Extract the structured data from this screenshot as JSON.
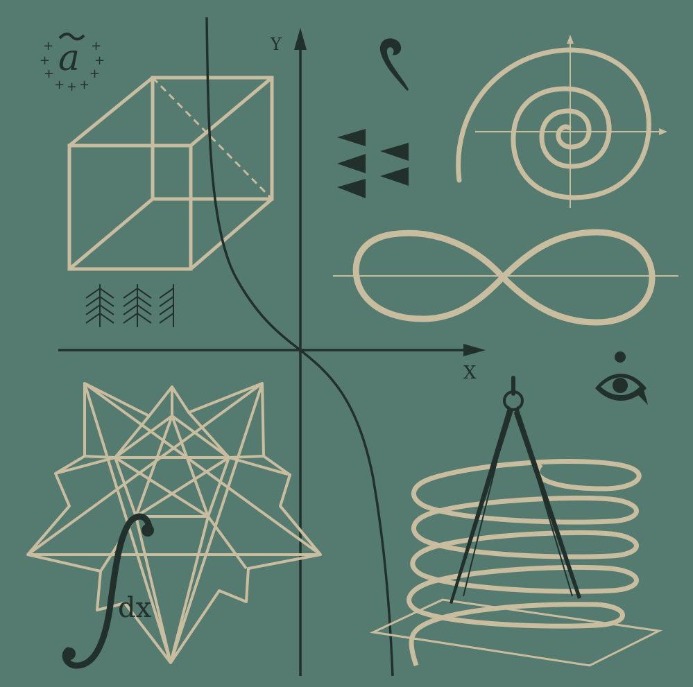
{
  "canvas": {
    "background": "#557a70"
  },
  "palette": {
    "beige": "#c9bd9f",
    "dark": "#22302b"
  },
  "axes": {
    "x_label": "X",
    "y_label": "Y"
  },
  "symbols": {
    "vector_label": "a",
    "integral_text": "dx"
  },
  "icons": [
    "vector-symbol-icon",
    "cube-wireframe-icon",
    "branch-pattern-icon",
    "curve-hook-icon",
    "triangle-pattern-icon",
    "spiral-icon",
    "lemniscate-icon",
    "eye-icon",
    "star-polyhedron-icon",
    "integral-icon",
    "compass-icon",
    "helix-icon"
  ]
}
